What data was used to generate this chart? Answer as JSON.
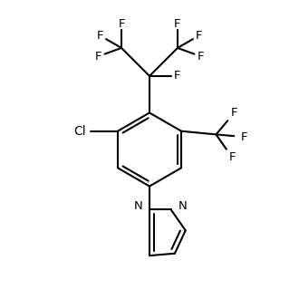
{
  "background_color": "#ffffff",
  "line_color": "#000000",
  "line_width": 1.5,
  "font_size": 9.5,
  "figsize": [
    3.3,
    3.3
  ],
  "dpi": 100,
  "xlim": [
    -1.8,
    1.8
  ],
  "ylim": [
    -2.2,
    2.2
  ]
}
